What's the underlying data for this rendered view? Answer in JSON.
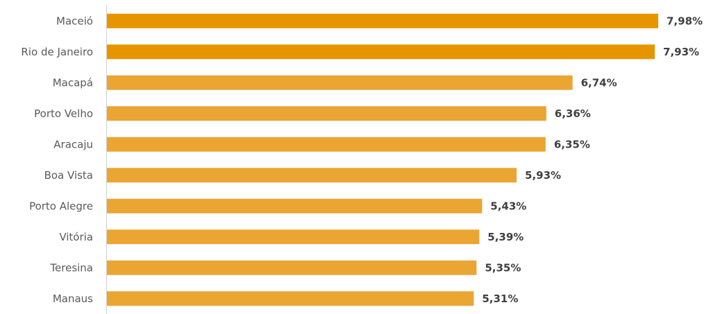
{
  "chart_data": {
    "type": "bar",
    "orientation": "horizontal",
    "title": "",
    "xlabel": "",
    "ylabel": "",
    "categories": [
      "Maceió",
      "Rio de Janeiro",
      "Macapá",
      "Porto Velho",
      "Aracaju",
      "Boa Vista",
      "Porto Alegre",
      "Vitória",
      "Teresina",
      "Manaus"
    ],
    "values": [
      7.98,
      7.93,
      6.74,
      6.36,
      6.35,
      5.93,
      5.43,
      5.39,
      5.35,
      5.31
    ],
    "value_labels": [
      "7,98%",
      "7,93%",
      "6,74%",
      "6,36%",
      "6,35%",
      "5,93%",
      "5,43%",
      "5,39%",
      "5,35%",
      "5,31%"
    ],
    "xlim": [
      0,
      7.98
    ],
    "grid": false,
    "legend": "none",
    "colors": {
      "highlight": "#E69500",
      "default": "#EBA533",
      "axis": "#d0d0d0"
    },
    "highlight_count": 2
  }
}
